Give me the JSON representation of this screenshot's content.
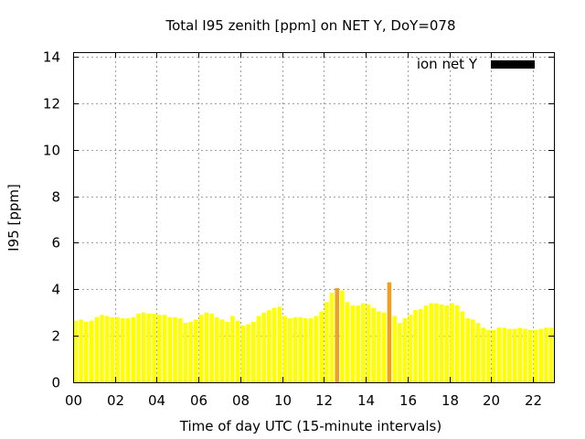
{
  "chart_data": {
    "type": "bar",
    "title": "Total I95 zenith [ppm] on NET Y, DoY=078",
    "xlabel": "Time of day UTC (15-minute intervals)",
    "ylabel": "I95 [ppm]",
    "xlim": [
      0,
      23
    ],
    "ylim": [
      0,
      14.2
    ],
    "x_ticks": [
      "00",
      "02",
      "04",
      "06",
      "08",
      "10",
      "12",
      "14",
      "16",
      "18",
      "20",
      "22"
    ],
    "y_ticks": [
      "0",
      "2",
      "4",
      "6",
      "8",
      "10",
      "12",
      "14"
    ],
    "grid": true,
    "legend": {
      "position": "top-right",
      "entries": [
        {
          "label": "ion net Y",
          "color": "#000000"
        }
      ]
    },
    "bar_width_hours": 0.2,
    "series": [
      {
        "x": [
          0.125,
          0.375,
          0.625,
          0.875,
          1.125,
          1.375,
          1.625,
          1.875,
          2.125,
          2.375,
          2.625,
          2.875,
          3.125,
          3.375,
          3.625,
          3.875,
          4.125,
          4.375,
          4.625,
          4.875,
          5.125,
          5.375,
          5.625,
          5.875,
          6.125,
          6.375,
          6.625,
          6.875,
          7.125,
          7.375,
          7.625,
          7.875,
          8.125,
          8.375,
          8.625,
          8.875,
          9.125,
          9.375,
          9.625,
          9.875,
          10.125,
          10.375,
          10.625,
          10.875,
          11.125,
          11.375,
          11.625,
          11.875,
          12.125,
          12.375,
          12.625,
          12.875,
          13.125,
          13.375,
          13.625,
          13.875,
          14.125,
          14.375,
          14.625,
          14.875,
          15.125,
          15.375,
          15.625,
          15.875,
          16.125,
          16.375,
          16.625,
          16.875,
          17.125,
          17.375,
          17.625,
          17.875,
          18.125,
          18.375,
          18.625,
          18.875,
          19.125,
          19.375,
          19.625,
          19.875,
          20.125,
          20.375,
          20.625,
          20.875,
          21.125,
          21.375,
          21.625,
          21.875,
          22.125,
          22.375,
          22.625,
          22.875
        ],
        "values": [
          2.65,
          2.7,
          2.6,
          2.65,
          2.8,
          2.9,
          2.85,
          2.8,
          2.8,
          2.75,
          2.75,
          2.8,
          2.95,
          3.0,
          2.95,
          2.95,
          2.9,
          2.9,
          2.8,
          2.8,
          2.75,
          2.55,
          2.6,
          2.7,
          2.9,
          3.0,
          2.95,
          2.8,
          2.7,
          2.6,
          2.85,
          2.65,
          2.45,
          2.5,
          2.6,
          2.85,
          3.0,
          3.1,
          3.2,
          3.25,
          2.85,
          2.75,
          2.8,
          2.8,
          2.75,
          2.75,
          2.85,
          3.05,
          3.45,
          3.85,
          4.05,
          3.95,
          3.45,
          3.3,
          3.3,
          3.4,
          3.35,
          3.2,
          3.05,
          3.0,
          4.3,
          2.85,
          2.55,
          2.75,
          2.9,
          3.1,
          3.15,
          3.3,
          3.4,
          3.4,
          3.35,
          3.3,
          3.4,
          3.3,
          3.05,
          2.75,
          2.7,
          2.55,
          2.35,
          2.25,
          2.25,
          2.35,
          2.35,
          2.3,
          2.3,
          2.35,
          2.3,
          2.25,
          2.25,
          2.3,
          2.35,
          2.35
        ],
        "colors": {
          "normal": "#ffff00",
          "elevated": "#f0a020"
        },
        "elevated_indices": [
          50,
          60
        ]
      }
    ]
  }
}
